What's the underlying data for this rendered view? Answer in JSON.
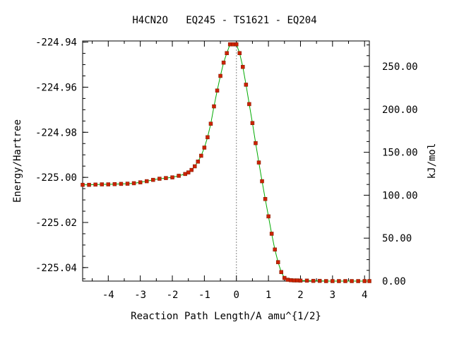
{
  "chart_data": {
    "type": "line",
    "title": "H4CN2O   EQ245 - TS1621 - EQ204",
    "xlabel": "Reaction Path Length/A amu^{1/2}",
    "ylabel": "Energy/Hartree",
    "y2label": "kJ/mol",
    "xlim": [
      -4.8,
      4.15
    ],
    "ylim": [
      -225.046,
      -224.9395
    ],
    "y2lim": [
      0,
      279.6
    ],
    "grid": false,
    "ts_marker_x": 0,
    "x_ticks": [
      {
        "value": -4,
        "label": "-4"
      },
      {
        "value": -3,
        "label": "-3"
      },
      {
        "value": -2,
        "label": "-2"
      },
      {
        "value": -1,
        "label": "-1"
      },
      {
        "value": 0,
        "label": "0"
      },
      {
        "value": 1,
        "label": "1"
      },
      {
        "value": 2,
        "label": "2"
      },
      {
        "value": 3,
        "label": "3"
      },
      {
        "value": 4,
        "label": "4"
      }
    ],
    "y_ticks": [
      {
        "value": -224.94,
        "label": "-224.94"
      },
      {
        "value": -224.96,
        "label": "-224.96"
      },
      {
        "value": -224.98,
        "label": "-224.98"
      },
      {
        "value": -225.0,
        "label": "-225.00"
      },
      {
        "value": -225.02,
        "label": "-225.02"
      },
      {
        "value": -225.04,
        "label": "-225.04"
      }
    ],
    "y2_ticks": [
      {
        "value": 250,
        "label": "250.00"
      },
      {
        "value": 200,
        "label": "200.00"
      },
      {
        "value": 150,
        "label": "150.00"
      },
      {
        "value": 100,
        "label": "100.00"
      },
      {
        "value": 50,
        "label": "50.00"
      },
      {
        "value": 0,
        "label": "0.00"
      }
    ],
    "series": [
      {
        "line_color": "#00aa00",
        "marker_color": "#cc2200",
        "x": [
          -4.8,
          -4.6,
          -4.4,
          -4.2,
          -4.0,
          -3.8,
          -3.6,
          -3.4,
          -3.2,
          -3.0,
          -2.8,
          -2.6,
          -2.4,
          -2.2,
          -2.0,
          -1.8,
          -1.6,
          -1.5,
          -1.4,
          -1.3,
          -1.2,
          -1.1,
          -1.0,
          -0.9,
          -0.8,
          -0.7,
          -0.6,
          -0.5,
          -0.4,
          -0.3,
          -0.2,
          -0.1,
          0.0,
          0.1,
          0.2,
          0.3,
          0.4,
          0.5,
          0.6,
          0.7,
          0.8,
          0.9,
          1.0,
          1.1,
          1.2,
          1.3,
          1.4,
          1.5,
          1.6,
          1.7,
          1.8,
          1.9,
          2.0,
          2.2,
          2.4,
          2.6,
          2.8,
          3.0,
          3.2,
          3.4,
          3.6,
          3.8,
          4.0,
          4.15
        ],
        "y": [
          -225.0033,
          -225.0033,
          -225.0032,
          -225.0031,
          -225.0031,
          -225.003,
          -225.0029,
          -225.0028,
          -225.0026,
          -225.0022,
          -225.0017,
          -225.0011,
          -225.0006,
          -225.0003,
          -225.0,
          -224.9993,
          -224.9985,
          -224.9978,
          -224.9967,
          -224.9951,
          -224.993,
          -224.9904,
          -224.9868,
          -224.9822,
          -224.9762,
          -224.9685,
          -224.9615,
          -224.955,
          -224.9491,
          -224.9449,
          -224.941,
          -224.941,
          -224.941,
          -224.9449,
          -224.951,
          -224.9589,
          -224.9675,
          -224.9759,
          -224.9848,
          -224.9934,
          -225.0017,
          -225.0096,
          -225.0173,
          -225.025,
          -225.032,
          -225.0376,
          -225.042,
          -225.0446,
          -225.0454,
          -225.0456,
          -225.0457,
          -225.0457,
          -225.0458,
          -225.0458,
          -225.0459,
          -225.0459,
          -225.046,
          -225.046,
          -225.046,
          -225.046,
          -225.046,
          -225.046,
          -225.046,
          -225.046
        ]
      }
    ]
  }
}
